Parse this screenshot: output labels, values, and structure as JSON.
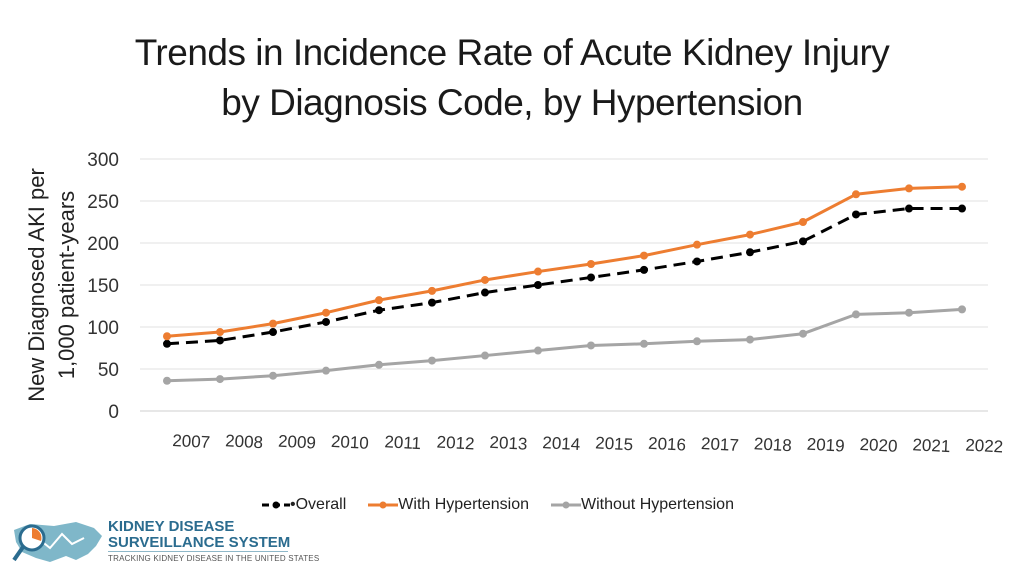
{
  "chart_data": {
    "type": "line",
    "title_line1": "Trends in Incidence Rate of Acute Kidney Injury",
    "title_line2": "by Diagnosis Code, by Hypertension",
    "ylabel_line1": "New Diagnosed AKI per",
    "ylabel_line2": "1,000 patient-years",
    "xlabel": "",
    "ylim": [
      0,
      300
    ],
    "yticks": [
      0,
      50,
      100,
      150,
      200,
      250,
      300
    ],
    "categories": [
      "2007",
      "2008",
      "2009",
      "2010",
      "2011",
      "2012",
      "2013",
      "2014",
      "2015",
      "2016",
      "2017",
      "2018",
      "2019",
      "2020",
      "2021",
      "2022"
    ],
    "grid": true,
    "legend_position": "bottom",
    "series": [
      {
        "name": "Overall",
        "legend_label": "•Overall",
        "color": "#000000",
        "dashed": true,
        "values": [
          80,
          84,
          94,
          106,
          120,
          129,
          141,
          150,
          159,
          168,
          178,
          189,
          202,
          234,
          241,
          241
        ]
      },
      {
        "name": "With Hypertension",
        "legend_label": "With Hypertension",
        "color": "#ed7d31",
        "dashed": false,
        "values": [
          89,
          94,
          104,
          117,
          132,
          143,
          156,
          166,
          175,
          185,
          198,
          210,
          225,
          258,
          265,
          267
        ]
      },
      {
        "name": "Without Hypertension",
        "legend_label": "Without Hypertension",
        "color": "#a5a5a5",
        "dashed": false,
        "values": [
          36,
          38,
          42,
          48,
          55,
          60,
          66,
          72,
          78,
          80,
          83,
          85,
          92,
          115,
          117,
          121
        ]
      }
    ]
  },
  "logo": {
    "line1": "KIDNEY DISEASE",
    "line2": "SURVEILLANCE SYSTEM",
    "tagline": "TRACKING KIDNEY DISEASE IN THE UNITED STATES"
  }
}
